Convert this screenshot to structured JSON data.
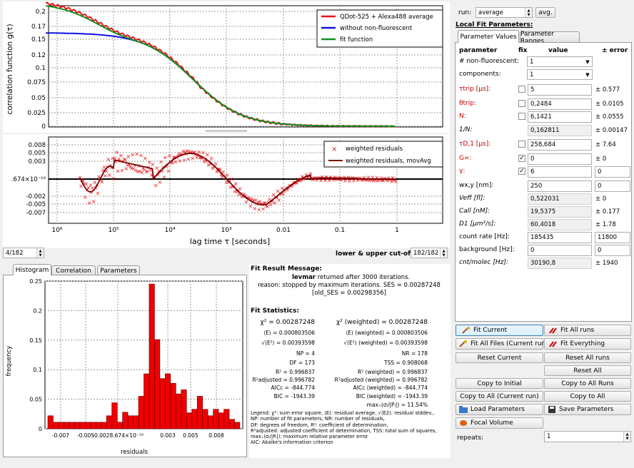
{
  "plot_top": {
    "ylabel": "correlation function g(τ)",
    "y_ticks": [
      "0.2",
      "0.17",
      "0.15",
      "0.12",
      "0.1",
      "0.075",
      "0.05",
      "0.025",
      "0"
    ],
    "legend": [
      "QDot-525 + Alexa488 average",
      "without non-fluorescent",
      "fit function"
    ],
    "colors": {
      "data": "#e8141a",
      "nonfluor": "#1010e0",
      "fit": "#178f1d"
    }
  },
  "plot_resid": {
    "y_ticks": [
      "0.008",
      "0.005",
      "0.003",
      ".674×10⁻¹⁹",
      "-0.002",
      "-0.005",
      "-0.007"
    ],
    "x_ticks": [
      "10⁶",
      "10⁵",
      "10⁴",
      "10³",
      "0.01",
      "0.1",
      "1"
    ],
    "xlabel": "lag time  τ [seconds]",
    "legend": [
      "weighted residuals",
      "weighted residuals, movAvg"
    ]
  },
  "cutoff": {
    "left": "4/182",
    "label": "lower & upper cut-off",
    "right": "182/182"
  },
  "hist_tabs": [
    "Histogram",
    "Correlation",
    "Parameters"
  ],
  "histogram": {
    "ylabel": "frequency",
    "xlabel": "residuals",
    "y_ticks": [
      "0.25",
      "0.2",
      "0.15",
      "0.1",
      "0.05",
      "0"
    ],
    "x_ticks": [
      "-0.007",
      "-0.005",
      "-0.0028.674×10⁻¹⁹",
      "0.003",
      "0.005",
      "0.008"
    ]
  },
  "chart_data": {
    "type": "bar",
    "title": "",
    "xlabel": "residuals",
    "ylabel": "frequency",
    "ylim": [
      0,
      0.25
    ],
    "values": [
      0.022,
      0.011,
      0.011,
      0.011,
      0.011,
      0.011,
      0.011,
      0.011,
      0.011,
      0.011,
      0.011,
      0.022,
      0.044,
      0.011,
      0.028,
      0.022,
      0.022,
      0.055,
      0.093,
      0.245,
      0.151,
      0.085,
      0.093,
      0.077,
      0.059,
      0.066,
      0.027,
      0.033,
      0.055,
      0.033,
      0.022,
      0.033,
      0.027,
      0.033,
      0.016,
      0.011
    ]
  },
  "fit_result": {
    "title": "Fit Result Message:",
    "algo": "levmar",
    "msg": " returned after 3000 iterations.",
    "reason": "reason: stopped by maximum iterations. SES = 0.00287248 [old_SES = 0.00298356]"
  },
  "stats_title": "Fit Statistics:",
  "stats_left": [
    "χ² = 0.00287248",
    "⟨E⟩ = 0.000803506",
    "√⟨E²⟩ = 0.00393598",
    "NP = 4",
    "DF = 173",
    "R² = 0.996837",
    "R²adjusted = 0.996782",
    "AICc = -844.774",
    "BIC = -1943.39"
  ],
  "stats_right": [
    "χ² (weighted) = 0.00287248",
    "⟨E⟩ (weighted) = 0.000803506",
    "√⟨E²⟩ (weighted) = 0.00393598",
    "NR = 178",
    "TSS = 0.908068",
    "R² (weighted) = 0.996837",
    "R²adjusted (weighted) = 0.996782",
    "AICc (weighted) = -844.774",
    "BIC (weighted) = -1943.39",
    "max₊(σᵢ/|Pᵢ|) = 11.54%"
  ],
  "legend_text": [
    "Legend: χ²: sum error square, ⟨E⟩: residual average, √⟨E2⟩: residual stddev.,",
    "NP: number of fit parameters, NR: number of residuals,",
    "DF: degrees of freedom, R²: coefficient of determination,",
    "R²adjusted: adjusted coefficient of determination, TSS: total sum of squares,",
    "max₊(σᵢ/|Pᵢ|): maximum relative parameter error",
    "AIC: Akaike's information criterion"
  ],
  "run": {
    "label": "run:",
    "value": "average",
    "avg_btn": "avg."
  },
  "local_title": "Local Fit Parameters:",
  "param_tabs": [
    "Parameter Values",
    "Parameter Ranges"
  ],
  "param_header": {
    "param": "parameter",
    "fix": "fix",
    "value": "value",
    "err": "± error"
  },
  "params": [
    {
      "name": "# non-fluorescent:",
      "value": "1",
      "err": "",
      "kind": "combo"
    },
    {
      "name": "components:",
      "value": "1",
      "err": "",
      "kind": "combo"
    },
    {
      "name": "τtrip [µs]:",
      "value": "5",
      "err": "± 0.577",
      "kind": "edit",
      "red": true,
      "fix": ""
    },
    {
      "name": "θtrip:",
      "value": "0,2484",
      "err": "± 0.0105",
      "kind": "edit",
      "red": true,
      "fix": ""
    },
    {
      "name": "N:",
      "value": "6,1421",
      "err": "± 0.0555",
      "kind": "edit",
      "red": true,
      "fix": ""
    },
    {
      "name": "1/N:",
      "value": "0,162811",
      "err": "± 0.00147",
      "kind": "ro",
      "italic": true
    },
    {
      "name": "τD,1 [µs]:",
      "value": "258,684",
      "err": "± 7.64",
      "kind": "edit",
      "red": true,
      "fix": ""
    },
    {
      "name": "G∞:",
      "value": "0",
      "err": "± 0",
      "kind": "edit",
      "red": true,
      "fix": "✓"
    },
    {
      "name": "γ:",
      "value": "6",
      "err": "0",
      "kind": "edit2",
      "red": true,
      "fix": "✓"
    },
    {
      "name": "wx,y [nm]:",
      "value": "250",
      "err": "0",
      "kind": "edit2"
    },
    {
      "name": "Veff [fl]:",
      "value": "0,522031",
      "err": "± 0",
      "kind": "ro",
      "italic": true
    },
    {
      "name": "Call [nM]:",
      "value": "19,5375",
      "err": "± 0.177",
      "kind": "ro",
      "italic": true
    },
    {
      "name": "D1 [µm²/s]:",
      "value": "60,4018",
      "err": "± 1.78",
      "kind": "ro",
      "italic": true
    },
    {
      "name": "count rate [Hz]:",
      "value": "185435",
      "err": "11800",
      "kind": "edit2"
    },
    {
      "name": "background [Hz]:",
      "value": "0",
      "err": "0",
      "kind": "edit2"
    },
    {
      "name": "cnt/molec [Hz]:",
      "value": "30190,8",
      "err": "± 1940",
      "kind": "ro",
      "italic": true
    }
  ],
  "buttons": {
    "fit_current": "Fit Current",
    "fit_all_runs": "Fit All runs",
    "fit_all_files": "Fit All Files (Current run)",
    "fit_everything": "Fit Everything",
    "reset_current": "Reset Current",
    "reset_all_runs": "Reset All runs",
    "reset_all": "Reset All",
    "copy_initial": "Copy to Initial",
    "copy_all_runs": "Copy to All Runs",
    "copy_all_current": "Copy to All (Current run)",
    "copy_all": "Copy to All",
    "load_params": "Load Parameters",
    "save_params": "Save Parameters",
    "focal_volume": "Focal Volume"
  },
  "repeats": {
    "label": "repeats:",
    "value": "1"
  }
}
